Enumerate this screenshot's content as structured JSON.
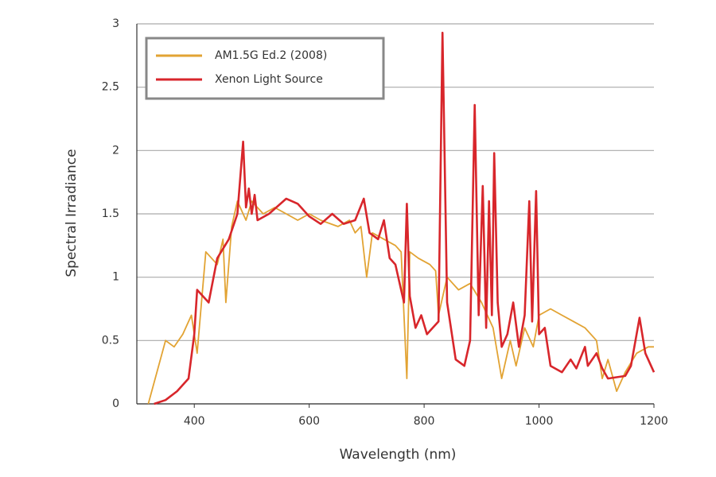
{
  "chart_data": {
    "type": "line",
    "xlabel": "Wavelength (nm)",
    "ylabel": "Spectral Irradiance",
    "xlim": [
      300,
      1200
    ],
    "xticks": [
      400,
      600,
      800,
      1000,
      1200
    ],
    "ylim": [
      0,
      3
    ],
    "yticks": [
      0,
      0.5,
      1,
      1.5,
      2,
      2.5,
      3
    ],
    "grid": true,
    "legend": "upper left",
    "series": [
      {
        "name": "AM1.5G Ed.2 (2008)",
        "color": "#e2a333",
        "x": [
          320,
          350,
          365,
          380,
          395,
          405,
          420,
          440,
          450,
          455,
          465,
          475,
          490,
          500,
          520,
          540,
          560,
          580,
          600,
          620,
          650,
          670,
          680,
          690,
          700,
          710,
          730,
          750,
          760,
          770,
          775,
          790,
          810,
          820,
          825,
          840,
          860,
          880,
          900,
          920,
          935,
          950,
          960,
          975,
          990,
          1000,
          1020,
          1040,
          1060,
          1080,
          1100,
          1110,
          1120,
          1135,
          1150,
          1170,
          1190,
          1200
        ],
        "values": [
          0,
          0.5,
          0.45,
          0.55,
          0.7,
          0.4,
          1.2,
          1.1,
          1.3,
          0.8,
          1.4,
          1.6,
          1.45,
          1.6,
          1.5,
          1.55,
          1.5,
          1.45,
          1.5,
          1.45,
          1.4,
          1.45,
          1.35,
          1.4,
          1.0,
          1.35,
          1.3,
          1.25,
          1.2,
          0.2,
          1.2,
          1.15,
          1.1,
          1.05,
          0.7,
          1.0,
          0.9,
          0.95,
          0.8,
          0.6,
          0.2,
          0.5,
          0.3,
          0.6,
          0.45,
          0.7,
          0.75,
          0.7,
          0.65,
          0.6,
          0.5,
          0.2,
          0.35,
          0.1,
          0.25,
          0.4,
          0.45,
          0.45
        ]
      },
      {
        "name": "Xenon Light Source",
        "color": "#d8262b",
        "x": [
          330,
          350,
          370,
          390,
          400,
          405,
          415,
          425,
          440,
          460,
          475,
          485,
          490,
          495,
          500,
          505,
          510,
          530,
          560,
          580,
          600,
          620,
          640,
          660,
          680,
          695,
          705,
          720,
          730,
          740,
          750,
          760,
          765,
          770,
          775,
          785,
          795,
          805,
          815,
          825,
          832,
          840,
          855,
          870,
          880,
          888,
          895,
          902,
          908,
          913,
          918,
          922,
          928,
          935,
          945,
          955,
          965,
          975,
          983,
          988,
          995,
          1000,
          1010,
          1020,
          1040,
          1055,
          1065,
          1080,
          1085,
          1100,
          1110,
          1120,
          1150,
          1160,
          1175,
          1185,
          1200
        ],
        "values": [
          0,
          0.03,
          0.1,
          0.2,
          0.55,
          0.9,
          0.85,
          0.8,
          1.15,
          1.3,
          1.5,
          2.07,
          1.55,
          1.7,
          1.5,
          1.65,
          1.45,
          1.5,
          1.62,
          1.58,
          1.48,
          1.42,
          1.5,
          1.42,
          1.45,
          1.62,
          1.35,
          1.3,
          1.45,
          1.15,
          1.1,
          0.9,
          0.8,
          1.58,
          0.85,
          0.6,
          0.7,
          0.55,
          0.6,
          0.65,
          2.93,
          0.8,
          0.35,
          0.3,
          0.5,
          2.36,
          0.7,
          1.72,
          0.6,
          1.6,
          0.7,
          1.98,
          0.8,
          0.45,
          0.55,
          0.8,
          0.45,
          0.7,
          1.6,
          0.65,
          1.68,
          0.55,
          0.6,
          0.3,
          0.25,
          0.35,
          0.28,
          0.45,
          0.3,
          0.4,
          0.28,
          0.2,
          0.22,
          0.3,
          0.68,
          0.4,
          0.25
        ]
      }
    ]
  }
}
